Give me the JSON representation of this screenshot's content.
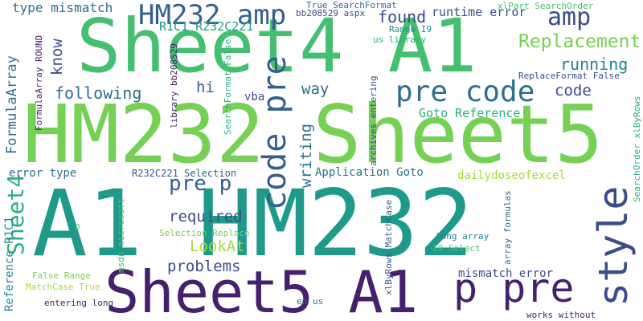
{
  "palette": {
    "background": "#ffffff",
    "dark_purple": "#45206d",
    "indigo": "#3b4c8a",
    "blue": "#355f8d",
    "slate_blue": "#2e6f8e",
    "teal": "#22848e",
    "aqua_teal": "#1f9a8a",
    "green_teal": "#29af7f",
    "green": "#44bf70",
    "light_green": "#75d054",
    "yellow_green": "#a7db34",
    "yellow": "#c7e020"
  },
  "words": [
    {
      "text": "A1 HM232",
      "color": "#1f9a8a"
    },
    {
      "text": "HM232 Sheet5",
      "color": "#75d054"
    },
    {
      "text": "Sheet4 A1",
      "color": "#44bf70"
    },
    {
      "text": "Sheet5 A1",
      "color": "#45206d"
    },
    {
      "text": "HM232 amp",
      "color": "#355f8d"
    },
    {
      "text": "pre code",
      "color": "#2e6f8e"
    },
    {
      "text": "code pre",
      "color": "#355f8d"
    },
    {
      "text": "p pre",
      "color": "#45206d"
    },
    {
      "text": "style",
      "color": "#3b4c8a"
    },
    {
      "text": "amp",
      "color": "#3b4c8a"
    },
    {
      "text": "Sheet4",
      "color": "#29af7f"
    },
    {
      "text": "pre p",
      "color": "#355f8d"
    },
    {
      "text": "Replacement",
      "color": "#75d054"
    },
    {
      "text": "running",
      "color": "#22848e"
    },
    {
      "text": "following",
      "color": "#2e6f8e"
    },
    {
      "text": "found",
      "color": "#3b4c8a"
    },
    {
      "text": "code",
      "color": "#3b4c8a"
    },
    {
      "text": "way",
      "color": "#2e6f8e"
    },
    {
      "text": "know",
      "color": "#3b4c8a"
    },
    {
      "text": "writing",
      "color": "#2e6f8e"
    },
    {
      "text": "required",
      "color": "#3b4c8a"
    },
    {
      "text": "problems",
      "color": "#3b4c8a"
    },
    {
      "text": "LookAt",
      "color": "#a7db34"
    },
    {
      "text": "hi",
      "color": "#355f8d"
    },
    {
      "text": "vba",
      "color": "#3b4c8a"
    },
    {
      "text": "FormulaArray",
      "color": "#2e6f8e"
    },
    {
      "text": "type mismatch",
      "color": "#2e6f8e"
    },
    {
      "text": "runtime error",
      "color": "#3b4c8a"
    },
    {
      "text": "R1C1 R232C221",
      "color": "#1f9a8a"
    },
    {
      "text": "Goto Reference",
      "color": "#29af7f"
    },
    {
      "text": "Application Goto",
      "color": "#2e6f8e"
    },
    {
      "text": "error type",
      "color": "#2e6f8e"
    },
    {
      "text": "dailydoseofexcel",
      "color": "#a7db34"
    },
    {
      "text": "R232C221 Selection",
      "color": "#355f8d"
    },
    {
      "text": "mismatch error",
      "color": "#3b4c8a"
    },
    {
      "text": "Reference R1C1",
      "color": "#22848e"
    },
    {
      "text": "Selection Replace",
      "color": "#75d054"
    },
    {
      "text": "False Range",
      "color": "#75d054"
    },
    {
      "text": "MatchCase True",
      "color": "#a7db34"
    },
    {
      "text": "entering long",
      "color": "#45206d"
    },
    {
      "text": "en us",
      "color": "#2e6f8e"
    },
    {
      "text": "works without",
      "color": "#45206d"
    },
    {
      "text": "long array",
      "color": "#22848e"
    },
    {
      "text": "I9 Select",
      "color": "#44bf70"
    },
    {
      "text": "True SearchFormat",
      "color": "#2e6f8e"
    },
    {
      "text": "bb208529 aspx",
      "color": "#3b4c8a"
    },
    {
      "text": "Range I9",
      "color": "#22848e"
    },
    {
      "text": "us library",
      "color": "#29af7f"
    },
    {
      "text": "xlPart SearchOrder",
      "color": "#44bf70"
    },
    {
      "text": "ReplaceFormat False",
      "color": "#3b4c8a"
    },
    {
      "text": "SearchOrder xlByRows",
      "color": "#29af7f"
    },
    {
      "text": "FormulaArray ROUND",
      "color": "#45206d"
    },
    {
      "text": "library bb208529",
      "color": "#45206d"
    },
    {
      "text": "SearchFormat False",
      "color": "#29af7f"
    },
    {
      "text": "msdn microsoft",
      "color": "#44bf70"
    },
    {
      "text": "archives entering",
      "color": "#3b4c8a"
    },
    {
      "text": "xlByRows MatchCase",
      "color": "#355f8d"
    },
    {
      "text": "array formulas",
      "color": "#2e6f8e"
    },
    {
      "text": "p",
      "color": "#44bf70"
    }
  ]
}
